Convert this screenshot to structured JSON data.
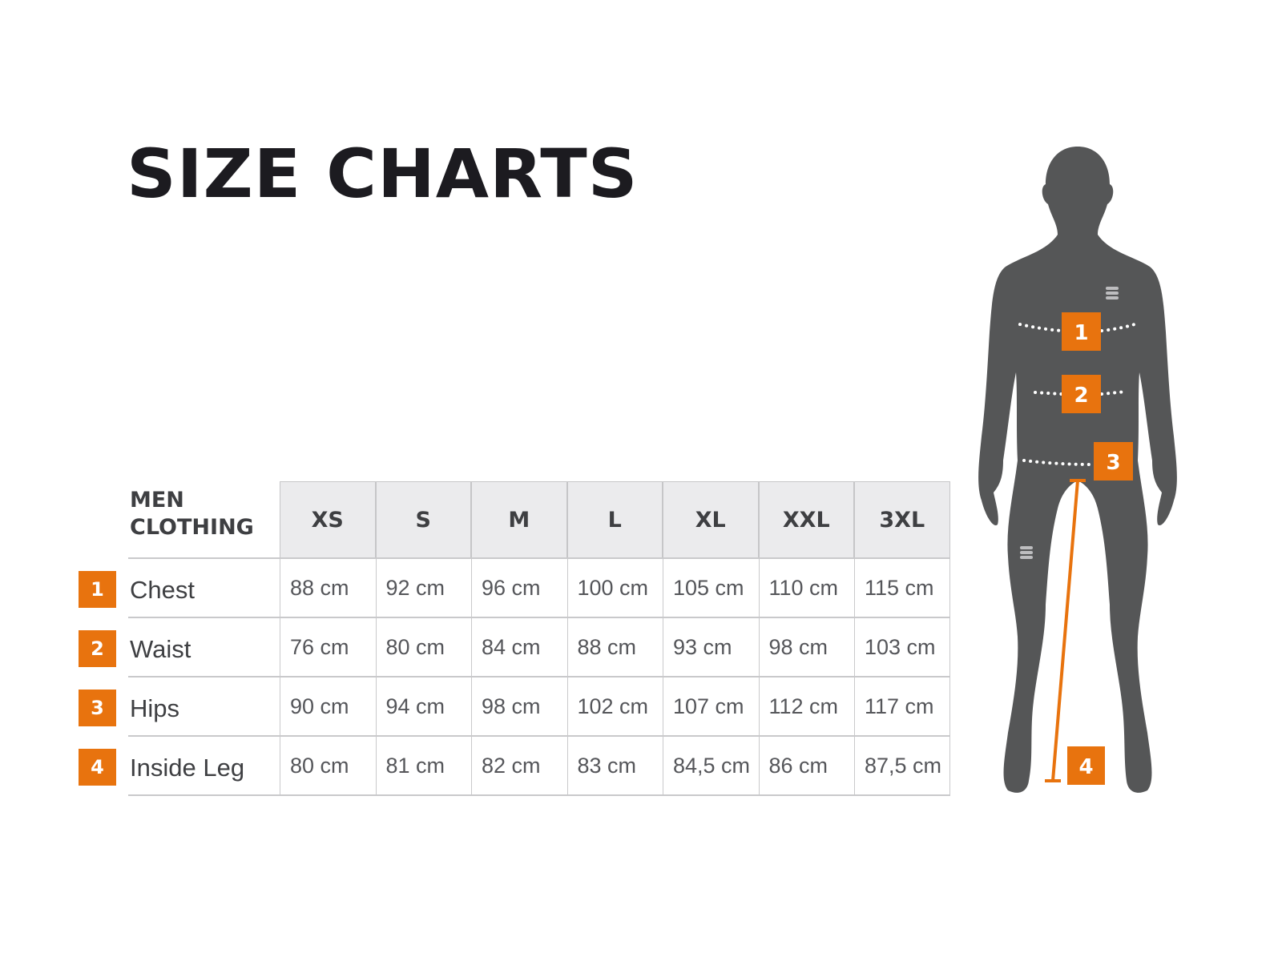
{
  "title": "SIZE CHARTS",
  "table": {
    "corner_line1": "MEN",
    "corner_line2": "CLOTHING",
    "sizes": [
      "XS",
      "S",
      "M",
      "L",
      "XL",
      "XXL",
      "3XL"
    ],
    "rows": [
      {
        "badge": "1",
        "label": "Chest",
        "values": [
          "88 cm",
          "92 cm",
          "96 cm",
          "100 cm",
          "105 cm",
          "110 cm",
          "115 cm"
        ]
      },
      {
        "badge": "2",
        "label": "Waist",
        "values": [
          "76 cm",
          "80 cm",
          "84 cm",
          "88 cm",
          "93 cm",
          "98 cm",
          "103 cm"
        ]
      },
      {
        "badge": "3",
        "label": "Hips",
        "values": [
          "90 cm",
          "94 cm",
          "98 cm",
          "102 cm",
          "107 cm",
          "112 cm",
          "117 cm"
        ]
      },
      {
        "badge": "4",
        "label": "Inside Leg",
        "values": [
          "80 cm",
          "81 cm",
          "82 cm",
          "83 cm",
          "84,5 cm",
          "86 cm",
          "87,5 cm"
        ]
      }
    ]
  },
  "figure": {
    "markers": [
      "1",
      "2",
      "3",
      "4"
    ]
  },
  "colors": {
    "accent": "#e8730e",
    "silhouette": "#555657",
    "header_bg": "#ebebed",
    "text": "#3e3f42"
  }
}
